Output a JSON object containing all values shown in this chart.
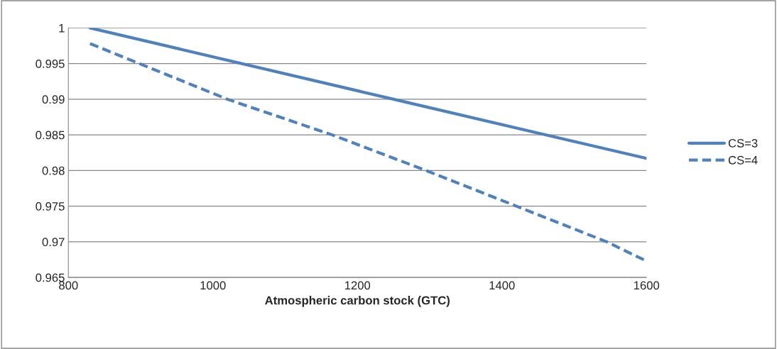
{
  "chart_data": {
    "type": "line",
    "xlabel": "Atmospheric carbon stock (GTC)",
    "series": [
      {
        "name": "CS=3",
        "color": "#4f81bd",
        "line_style": "solid",
        "x": [
          830,
          1250,
          1600
        ],
        "values": [
          1.0,
          0.99,
          0.9817
        ]
      },
      {
        "name": "CS=4",
        "color": "#4f81bd",
        "line_style": "dashed",
        "x": [
          830,
          1020,
          1165,
          1295,
          1420,
          1545,
          1600
        ],
        "values": [
          0.9978,
          0.99,
          0.985,
          0.98,
          0.975,
          0.97,
          0.9673
        ]
      }
    ],
    "xlim": [
      800,
      1600
    ],
    "xticks": [
      800,
      1000,
      1200,
      1400,
      1600
    ],
    "ylim": [
      0.965,
      1
    ],
    "yticks": [
      0.965,
      0.97,
      0.975,
      0.98,
      0.985,
      0.99,
      0.995,
      {
        "value": 1,
        "label": "1"
      }
    ],
    "grid": "y",
    "legend": "right",
    "marker": "none"
  }
}
